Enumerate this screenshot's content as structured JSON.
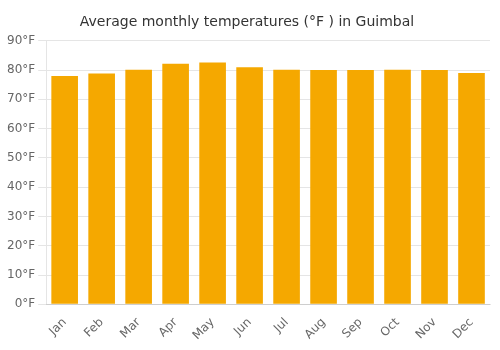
{
  "chart_data": {
    "type": "bar",
    "title": "Average monthly temperatures (°F ) in Guimbal",
    "categories": [
      "Jan",
      "Feb",
      "Mar",
      "Apr",
      "May",
      "Jun",
      "Jul",
      "Aug",
      "Sep",
      "Oct",
      "Nov",
      "Dec"
    ],
    "values": [
      78.0,
      78.8,
      80.1,
      82.2,
      82.6,
      81.0,
      80.1,
      80.0,
      80.0,
      80.1,
      80.0,
      79.0
    ],
    "color": "#F5A800",
    "ylim": [
      0,
      90
    ],
    "yticks": [
      {
        "value": 0,
        "label": "0°F"
      },
      {
        "value": 10,
        "label": "10°F"
      },
      {
        "value": 20,
        "label": "20°F"
      },
      {
        "value": 30,
        "label": "30°F"
      },
      {
        "value": 40,
        "label": "40°F"
      },
      {
        "value": 50,
        "label": "50°F"
      },
      {
        "value": 60,
        "label": "60°F"
      },
      {
        "value": 70,
        "label": "70°F"
      },
      {
        "value": 80,
        "label": "80°F"
      },
      {
        "value": 90,
        "label": "90°F"
      }
    ],
    "grid": true
  }
}
